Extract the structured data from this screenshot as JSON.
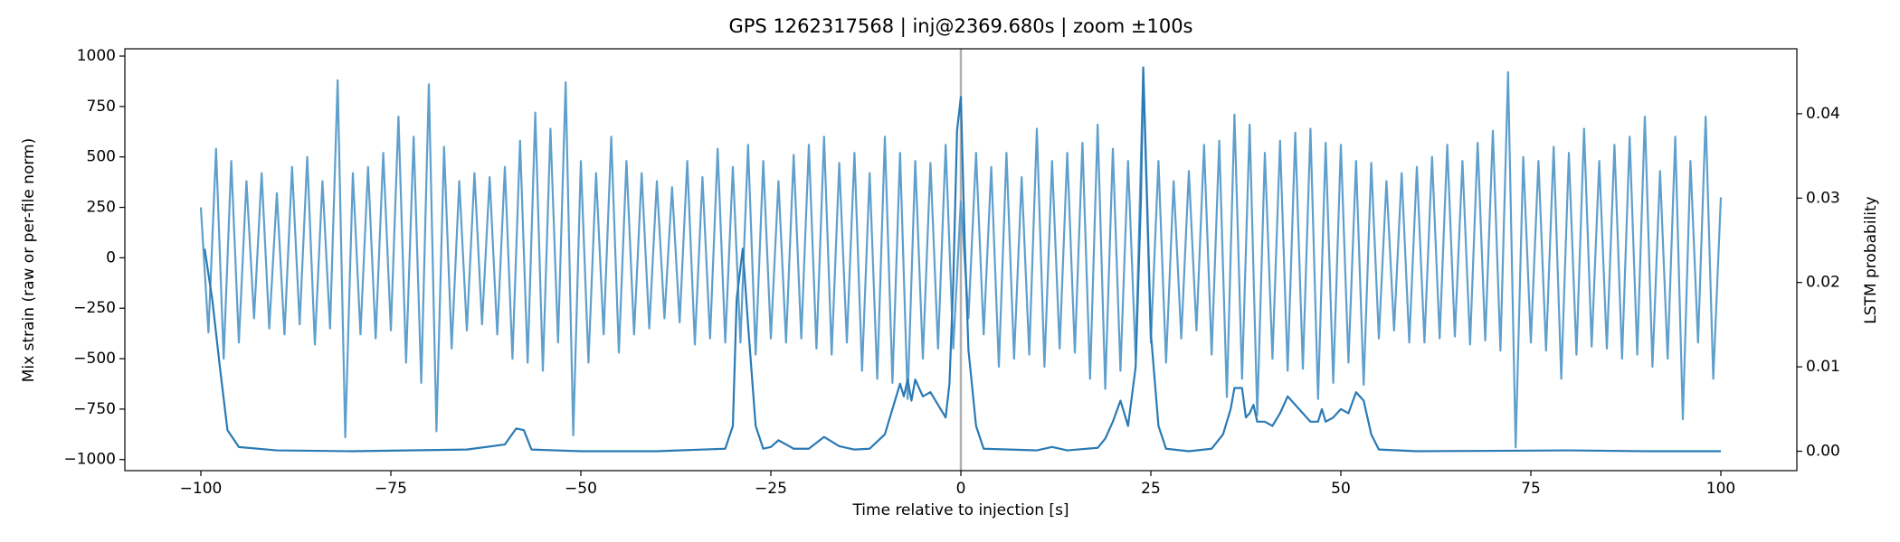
{
  "chart_data": {
    "type": "line",
    "title": "GPS 1262317568 | inj@2369.680s | zoom ±100s",
    "x_label": "Time relative to injection [s]",
    "y_label": "Mix strain (raw or per-file norm)",
    "y2_label": "LSTM probability",
    "xlim": [
      -110,
      110
    ],
    "ylim": [
      -1055,
      1036
    ],
    "y2lim": [
      -0.0023,
      0.0477
    ],
    "xticks": [
      {
        "value": -100,
        "label": "−100"
      },
      {
        "value": -75,
        "label": "−75"
      },
      {
        "value": -50,
        "label": "−50"
      },
      {
        "value": -25,
        "label": "−25"
      },
      0,
      25,
      50,
      75,
      100
    ],
    "yticks": [
      {
        "value": -1000,
        "label": "−1000"
      },
      {
        "value": -750,
        "label": "−750"
      },
      {
        "value": -500,
        "label": "−500"
      },
      {
        "value": -250,
        "label": "−250"
      },
      0,
      250,
      500,
      750,
      1000
    ],
    "y2ticks": [
      {
        "value": 0,
        "label": "0.00"
      },
      {
        "value": 0.01,
        "label": "0.01"
      },
      {
        "value": 0.02,
        "label": "0.02"
      },
      {
        "value": 0.03,
        "label": "0.03"
      },
      {
        "value": 0.04,
        "label": "0.04"
      }
    ],
    "vline": 0,
    "grid": false,
    "series": [
      {
        "name": "strain",
        "color": "#5f9fcc",
        "x": [
          -100,
          -99,
          -98,
          -97,
          -96,
          -95,
          -94,
          -93,
          -92,
          -91,
          -90,
          -89,
          -88,
          -87,
          -86,
          -85,
          -84,
          -83,
          -82,
          -81,
          -80,
          -79,
          -78,
          -77,
          -76,
          -75,
          -74,
          -73,
          -72,
          -71,
          -70,
          -69,
          -68,
          -67,
          -66,
          -65,
          -64,
          -63,
          -62,
          -61,
          -60,
          -59,
          -58,
          -57,
          -56,
          -55,
          -54,
          -53,
          -52,
          -51,
          -50,
          -49,
          -48,
          -47,
          -46,
          -45,
          -44,
          -43,
          -42,
          -41,
          -40,
          -39,
          -38,
          -37,
          -36,
          -35,
          -34,
          -33,
          -32,
          -31,
          -30,
          -29,
          -28,
          -27,
          -26,
          -25,
          -24,
          -23,
          -22,
          -21,
          -20,
          -19,
          -18,
          -17,
          -16,
          -15,
          -14,
          -13,
          -12,
          -11,
          -10,
          -9,
          -8,
          -7,
          -6,
          -5,
          -4,
          -3,
          -2,
          -1,
          0,
          1,
          2,
          3,
          4,
          5,
          6,
          7,
          8,
          9,
          10,
          11,
          12,
          13,
          14,
          15,
          16,
          17,
          18,
          19,
          20,
          21,
          22,
          23,
          24,
          25,
          26,
          27,
          28,
          29,
          30,
          31,
          32,
          33,
          34,
          35,
          36,
          37,
          38,
          39,
          40,
          41,
          42,
          43,
          44,
          45,
          46,
          47,
          48,
          49,
          50,
          51,
          52,
          53,
          54,
          55,
          56,
          57,
          58,
          59,
          60,
          61,
          62,
          63,
          64,
          65,
          66,
          67,
          68,
          69,
          70,
          71,
          72,
          73,
          74,
          75,
          76,
          77,
          78,
          79,
          80,
          81,
          82,
          83,
          84,
          85,
          86,
          87,
          88,
          89,
          90,
          91,
          92,
          93,
          94,
          95,
          96,
          97,
          98,
          99,
          100
        ],
        "values": [
          250,
          -370,
          540,
          -500,
          480,
          -420,
          380,
          -300,
          420,
          -350,
          320,
          -380,
          450,
          -330,
          500,
          -430,
          380,
          -350,
          880,
          -890,
          420,
          -380,
          450,
          -400,
          520,
          -360,
          700,
          -520,
          600,
          -620,
          860,
          -860,
          550,
          -450,
          380,
          -360,
          420,
          -330,
          400,
          -380,
          450,
          -500,
          580,
          -520,
          720,
          -560,
          640,
          -420,
          870,
          -880,
          480,
          -520,
          420,
          -380,
          600,
          -470,
          480,
          -380,
          420,
          -350,
          380,
          -300,
          350,
          -320,
          480,
          -430,
          400,
          -400,
          540,
          -420,
          450,
          -420,
          560,
          -480,
          480,
          -400,
          380,
          -420,
          510,
          -400,
          560,
          -450,
          600,
          -480,
          470,
          -420,
          520,
          -560,
          420,
          -600,
          600,
          -620,
          520,
          -700,
          480,
          -500,
          470,
          -450,
          560,
          -450,
          280,
          -300,
          520,
          -380,
          450,
          -540,
          520,
          -500,
          400,
          -480,
          640,
          -540,
          480,
          -450,
          520,
          -470,
          570,
          -600,
          660,
          -650,
          540,
          -560,
          480,
          -500,
          920,
          -420,
          480,
          -520,
          380,
          -400,
          430,
          -360,
          560,
          -480,
          580,
          -690,
          710,
          -600,
          660,
          -780,
          520,
          -500,
          580,
          -560,
          620,
          -550,
          640,
          -700,
          570,
          -620,
          560,
          -520,
          480,
          -630,
          470,
          -400,
          380,
          -360,
          420,
          -420,
          450,
          -420,
          500,
          -400,
          560,
          -390,
          480,
          -430,
          570,
          -410,
          630,
          -460,
          920,
          -940,
          500,
          -420,
          480,
          -460,
          550,
          -600,
          520,
          -480,
          640,
          -440,
          480,
          -450,
          560,
          -500,
          600,
          -480,
          700,
          -540,
          430,
          -500,
          600,
          -800,
          480,
          -420,
          700,
          -600,
          300
        ]
      },
      {
        "name": "LSTM",
        "color": "#2a7ab5",
        "axis": "y2",
        "x": [
          -99.5,
          -98.5,
          -97.5,
          -96.5,
          -95,
          -90,
          -80,
          -65,
          -60,
          -58.5,
          -57.5,
          -56.5,
          -50,
          -40,
          -31,
          -30,
          -29.5,
          -28.7,
          -28,
          -27,
          -26,
          -25,
          -24,
          -22,
          -20,
          -18,
          -16,
          -14,
          -12,
          -10,
          -9,
          -8,
          -7.5,
          -7,
          -6.5,
          -6,
          -5,
          -4,
          -3,
          -2,
          -1.5,
          -1,
          -0.5,
          0,
          0.5,
          1,
          2,
          3,
          10,
          12,
          14,
          18,
          19,
          20,
          21,
          22,
          23,
          23.7,
          24,
          24.5,
          25,
          26,
          27,
          30,
          33,
          34.5,
          35.5,
          36,
          37,
          37.5,
          38,
          38.5,
          39,
          40,
          41,
          42,
          43,
          44,
          45,
          46,
          47,
          47.5,
          48,
          49,
          50,
          51,
          52,
          53,
          54,
          55,
          60,
          80,
          90,
          100
        ],
        "values": [
          0.024,
          0.018,
          0.01,
          0.0025,
          0.0005,
          0.0001,
          0,
          0.0002,
          0.0008,
          0.0027,
          0.0025,
          0.0002,
          0,
          0,
          0.0003,
          0.003,
          0.018,
          0.024,
          0.015,
          0.003,
          0.0003,
          0.0005,
          0.0013,
          0.0003,
          0.0003,
          0.0017,
          0.0006,
          0.0002,
          0.0003,
          0.002,
          0.005,
          0.008,
          0.0065,
          0.0085,
          0.006,
          0.0085,
          0.0065,
          0.007,
          0.0055,
          0.004,
          0.008,
          0.02,
          0.038,
          0.042,
          0.025,
          0.012,
          0.003,
          0.0003,
          0.0001,
          0.0005,
          0.0001,
          0.0004,
          0.0015,
          0.0035,
          0.006,
          0.003,
          0.01,
          0.03,
          0.0455,
          0.03,
          0.014,
          0.003,
          0.0003,
          0,
          0.0003,
          0.002,
          0.005,
          0.0075,
          0.0075,
          0.004,
          0.0045,
          0.0055,
          0.0035,
          0.0035,
          0.003,
          0.0045,
          0.0065,
          0.0055,
          0.0045,
          0.0035,
          0.0035,
          0.005,
          0.0035,
          0.004,
          0.005,
          0.0045,
          0.007,
          0.006,
          0.002,
          0.0002,
          0,
          0.0001,
          0,
          0
        ]
      }
    ]
  }
}
